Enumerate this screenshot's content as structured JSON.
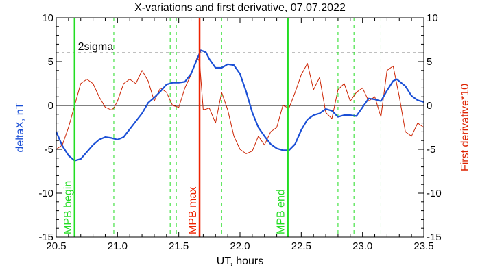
{
  "chart_data": {
    "type": "line",
    "title": "X-variations and first derivative, 07.07.2022",
    "xlabel": "UT, hours",
    "ylabel_left": "deltaX, nT",
    "ylabel_right": "First derivative*10",
    "xlim": [
      20.5,
      23.5
    ],
    "ylim": [
      -15,
      10
    ],
    "x_ticks": [
      20.5,
      21.0,
      21.5,
      22.0,
      22.5,
      23.0,
      23.5
    ],
    "x_tick_labels": [
      "20.5",
      "21.0",
      "21.5",
      "22.0",
      "22.5",
      "23.0",
      "23.5"
    ],
    "y_ticks": [
      10,
      5,
      0,
      -5,
      -10,
      -15
    ],
    "y_tick_labels": [
      "10",
      "5",
      "0",
      "-5",
      "-10",
      "-15"
    ],
    "colors": {
      "deltaX": "#1a4fd6",
      "derivative": "#cc2200",
      "mpb_lines": "#22dd22",
      "mpb_max": "#ee2200",
      "sigma_line": "#000000",
      "zero_line": "#000000",
      "left_axis_label": "#1a4fd6",
      "right_axis_label": "#dd2200"
    },
    "sigma": {
      "value": 6,
      "label": "2sigma"
    },
    "markers": [
      {
        "x": 20.65,
        "label": "MPB begin",
        "kind": "begin"
      },
      {
        "x": 21.67,
        "label": "MPB max",
        "kind": "max"
      },
      {
        "x": 22.39,
        "label": "MPB end",
        "kind": "end"
      }
    ],
    "dashed_lines_x": [
      20.97,
      21.43,
      21.48,
      21.85,
      22.8,
      22.93,
      23.15
    ],
    "series": [
      {
        "key": "deltaX",
        "values": [
          [
            20.5,
            -3.0
          ],
          [
            20.55,
            -4.6
          ],
          [
            20.6,
            -5.7
          ],
          [
            20.65,
            -6.3
          ],
          [
            20.7,
            -6.1
          ],
          [
            20.75,
            -5.3
          ],
          [
            20.8,
            -4.5
          ],
          [
            20.85,
            -3.9
          ],
          [
            20.9,
            -3.6
          ],
          [
            20.95,
            -3.7
          ],
          [
            21.0,
            -3.9
          ],
          [
            21.05,
            -3.6
          ],
          [
            21.1,
            -2.7
          ],
          [
            21.15,
            -1.8
          ],
          [
            21.2,
            -0.9
          ],
          [
            21.25,
            0.3
          ],
          [
            21.3,
            0.9
          ],
          [
            21.35,
            1.6
          ],
          [
            21.4,
            2.4
          ],
          [
            21.45,
            2.6
          ],
          [
            21.5,
            2.6
          ],
          [
            21.55,
            2.7
          ],
          [
            21.6,
            3.6
          ],
          [
            21.65,
            5.3
          ],
          [
            21.68,
            6.3
          ],
          [
            21.72,
            6.1
          ],
          [
            21.75,
            5.3
          ],
          [
            21.8,
            4.3
          ],
          [
            21.85,
            4.3
          ],
          [
            21.9,
            4.7
          ],
          [
            21.95,
            4.6
          ],
          [
            22.0,
            3.6
          ],
          [
            22.05,
            1.6
          ],
          [
            22.1,
            -0.8
          ],
          [
            22.15,
            -2.5
          ],
          [
            22.2,
            -3.5
          ],
          [
            22.25,
            -4.4
          ],
          [
            22.3,
            -4.9
          ],
          [
            22.35,
            -5.1
          ],
          [
            22.4,
            -5.1
          ],
          [
            22.45,
            -4.4
          ],
          [
            22.5,
            -2.8
          ],
          [
            22.55,
            -1.6
          ],
          [
            22.6,
            -1.1
          ],
          [
            22.65,
            -0.9
          ],
          [
            22.7,
            -0.4
          ],
          [
            22.75,
            -0.6
          ],
          [
            22.8,
            -1.3
          ],
          [
            22.85,
            -1.1
          ],
          [
            22.9,
            -1.1
          ],
          [
            22.95,
            -1.2
          ],
          [
            23.0,
            -0.2
          ],
          [
            23.05,
            0.8
          ],
          [
            23.1,
            0.7
          ],
          [
            23.15,
            0.5
          ],
          [
            23.2,
            1.7
          ],
          [
            23.25,
            2.8
          ],
          [
            23.28,
            3.0
          ],
          [
            23.35,
            2.2
          ],
          [
            23.4,
            1.1
          ],
          [
            23.45,
            0.6
          ],
          [
            23.5,
            0.4
          ]
        ]
      },
      {
        "key": "derivative",
        "values": [
          [
            20.5,
            -5.0
          ],
          [
            20.55,
            -4.5
          ],
          [
            20.6,
            -2.5
          ],
          [
            20.65,
            0.0
          ],
          [
            20.7,
            2.5
          ],
          [
            20.75,
            3.0
          ],
          [
            20.8,
            2.5
          ],
          [
            20.85,
            1.0
          ],
          [
            20.9,
            -0.2
          ],
          [
            20.95,
            -0.5
          ],
          [
            20.97,
            -0.3
          ],
          [
            21.0,
            0.5
          ],
          [
            21.05,
            2.5
          ],
          [
            21.1,
            3.0
          ],
          [
            21.15,
            2.5
          ],
          [
            21.2,
            4.0
          ],
          [
            21.25,
            2.8
          ],
          [
            21.3,
            0.5
          ],
          [
            21.35,
            2.0
          ],
          [
            21.4,
            1.5
          ],
          [
            21.45,
            0.0
          ],
          [
            21.5,
            -0.2
          ],
          [
            21.55,
            2.0
          ],
          [
            21.6,
            3.5
          ],
          [
            21.65,
            5.5
          ],
          [
            21.67,
            5.0
          ],
          [
            21.7,
            -0.5
          ],
          [
            21.75,
            -0.3
          ],
          [
            21.8,
            -2.0
          ],
          [
            21.85,
            1.5
          ],
          [
            21.9,
            -0.5
          ],
          [
            21.95,
            -3.5
          ],
          [
            22.0,
            -5.0
          ],
          [
            22.05,
            -5.5
          ],
          [
            22.1,
            -5.2
          ],
          [
            22.15,
            -3.5
          ],
          [
            22.2,
            -4.5
          ],
          [
            22.25,
            -3.0
          ],
          [
            22.3,
            -2.5
          ],
          [
            22.35,
            0.0
          ],
          [
            22.4,
            -0.3
          ],
          [
            22.45,
            1.5
          ],
          [
            22.5,
            3.5
          ],
          [
            22.55,
            4.8
          ],
          [
            22.6,
            1.8
          ],
          [
            22.65,
            3.2
          ],
          [
            22.7,
            -0.8
          ],
          [
            22.75,
            -1.5
          ],
          [
            22.8,
            1.8
          ],
          [
            22.85,
            2.5
          ],
          [
            22.9,
            0.5
          ],
          [
            22.95,
            1.5
          ],
          [
            23.0,
            2.0
          ],
          [
            23.05,
            0.5
          ],
          [
            23.1,
            1.0
          ],
          [
            23.15,
            -1.3
          ],
          [
            23.2,
            4.0
          ],
          [
            23.25,
            4.5
          ],
          [
            23.3,
            1.0
          ],
          [
            23.35,
            -3.0
          ],
          [
            23.4,
            -3.5
          ],
          [
            23.45,
            -2.0
          ],
          [
            23.5,
            -2.5
          ]
        ]
      }
    ]
  }
}
